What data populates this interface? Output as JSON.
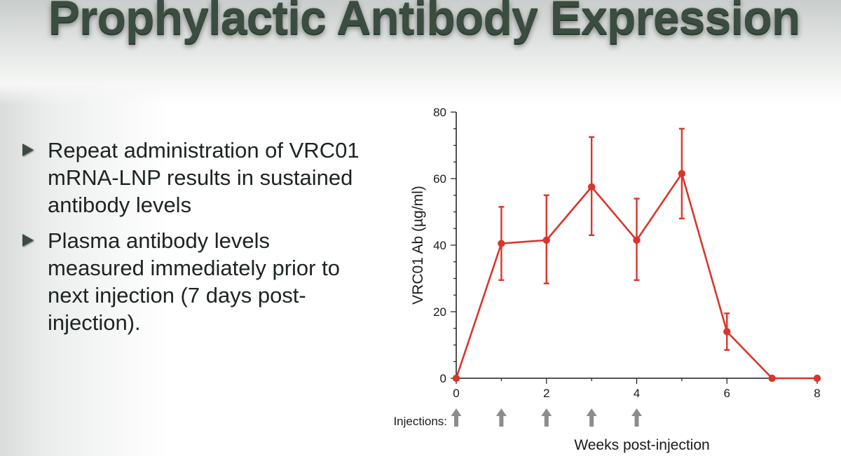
{
  "slide": {
    "title": "Prophylactic Antibody Expression",
    "bullets": [
      "Repeat administration of VRC01 mRNA-LNP results in sustained antibody levels",
      "Plasma antibody levels measured immediately prior to next injection (7 days post-injection)."
    ]
  },
  "colors": {
    "series": "#d9362b",
    "arrow": "#8c8c8c",
    "axis": "#1a1a1a",
    "title": "#3b4d40"
  },
  "chart_data": {
    "type": "line",
    "title": "",
    "xlabel": "Weeks post-injection",
    "ylabel": "VRC01 Ab (µg/ml)",
    "xlim": [
      0,
      8
    ],
    "ylim": [
      0,
      80
    ],
    "x_ticks": [
      0,
      2,
      4,
      6,
      8
    ],
    "y_ticks": [
      0,
      20,
      40,
      60,
      80
    ],
    "grid": false,
    "legend": "none",
    "series": [
      {
        "x": [
          0,
          1,
          2,
          3,
          4,
          5,
          6,
          7,
          8
        ],
        "y": [
          0,
          40.5,
          41.5,
          57.5,
          41.5,
          61.5,
          14,
          0,
          0
        ],
        "error_low": [
          0,
          29.5,
          28.5,
          43,
          29.5,
          48,
          8.5,
          0,
          0
        ],
        "error_high": [
          0,
          51.5,
          55,
          72.5,
          54,
          75,
          19.5,
          0,
          0
        ]
      }
    ],
    "injections_label": "Injections:",
    "injection_weeks": [
      0,
      1,
      2,
      3,
      4
    ]
  }
}
